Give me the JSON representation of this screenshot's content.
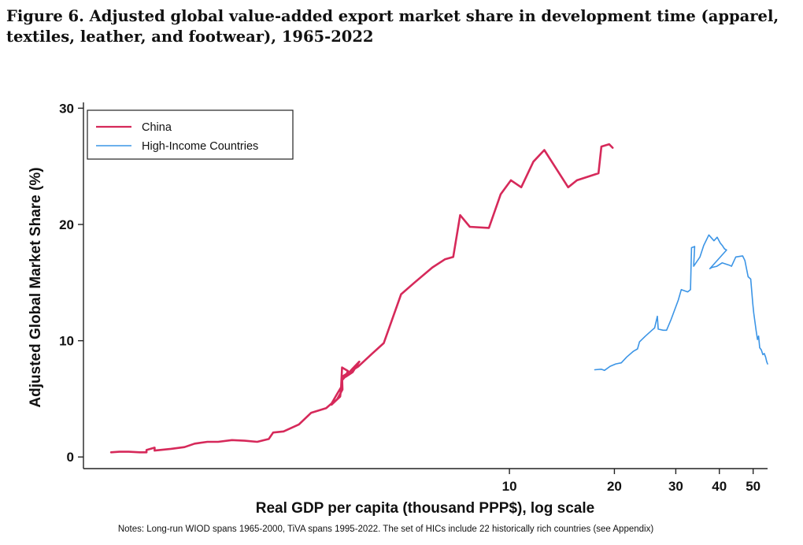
{
  "figure": {
    "title": "Figure 6. Adjusted global value-added export market share in development time (apparel, textiles, leather, and footwear), 1965-2022",
    "note": "Notes: Long-run WIOD spans 1965-2000, TiVA spans 1995-2022. The set of HICs include 22 historically rich countries (see Appendix)"
  },
  "chart_data": {
    "type": "line",
    "title": "",
    "xlabel": "Real GDP per capita (thousand PPP$), log scale",
    "ylabel": "Adjusted Global Market Share (%)",
    "x_scale": "log",
    "xlim": [
      0.6,
      55
    ],
    "ylim": [
      -1,
      30.5
    ],
    "x_ticks": [
      10,
      20,
      30,
      40,
      50
    ],
    "y_ticks": [
      0,
      10,
      20,
      30
    ],
    "grid": false,
    "legend_position": "top-left",
    "series": [
      {
        "name": "China",
        "color": "#d6295a",
        "points": [
          [
            0.72,
            0.4
          ],
          [
            0.76,
            0.45
          ],
          [
            0.81,
            0.45
          ],
          [
            0.87,
            0.4
          ],
          [
            0.91,
            0.4
          ],
          [
            0.91,
            0.6
          ],
          [
            0.96,
            0.8
          ],
          [
            0.96,
            0.55
          ],
          [
            1.07,
            0.7
          ],
          [
            1.17,
            0.85
          ],
          [
            1.25,
            1.15
          ],
          [
            1.36,
            1.3
          ],
          [
            1.46,
            1.3
          ],
          [
            1.6,
            1.45
          ],
          [
            1.74,
            1.4
          ],
          [
            1.89,
            1.3
          ],
          [
            2.04,
            1.55
          ],
          [
            2.1,
            2.1
          ],
          [
            2.25,
            2.2
          ],
          [
            2.49,
            2.8
          ],
          [
            2.7,
            3.8
          ],
          [
            2.98,
            4.2
          ],
          [
            3.09,
            4.6
          ],
          [
            3.2,
            5.4
          ],
          [
            3.29,
            6.0
          ],
          [
            3.31,
            7.7
          ],
          [
            3.44,
            7.4
          ],
          [
            3.39,
            6.9
          ],
          [
            3.55,
            7.3
          ],
          [
            3.71,
            8.2
          ],
          [
            3.55,
            7.6
          ],
          [
            3.31,
            6.6
          ],
          [
            3.27,
            5.2
          ],
          [
            3.09,
            4.5
          ],
          [
            3.21,
            5.0
          ],
          [
            3.32,
            5.8
          ],
          [
            3.31,
            6.9
          ],
          [
            3.69,
            7.8
          ],
          [
            4.04,
            8.9
          ],
          [
            4.36,
            9.8
          ],
          [
            4.89,
            14.0
          ],
          [
            5.34,
            15.0
          ],
          [
            6.01,
            16.3
          ],
          [
            6.53,
            17.0
          ],
          [
            6.9,
            17.2
          ],
          [
            7.22,
            20.8
          ],
          [
            7.7,
            19.8
          ],
          [
            8.73,
            19.7
          ],
          [
            9.44,
            22.6
          ],
          [
            10.1,
            23.8
          ],
          [
            10.81,
            23.2
          ],
          [
            11.71,
            25.4
          ],
          [
            12.59,
            26.4
          ],
          [
            14.74,
            23.2
          ],
          [
            15.62,
            23.8
          ],
          [
            16.76,
            24.1
          ],
          [
            18.0,
            24.4
          ],
          [
            18.35,
            26.7
          ],
          [
            19.32,
            26.9
          ],
          [
            19.77,
            26.6
          ]
        ]
      },
      {
        "name": "High-Income Countries",
        "color": "#3c95e6",
        "points": [
          [
            17.57,
            7.5
          ],
          [
            18.33,
            7.55
          ],
          [
            18.73,
            7.45
          ],
          [
            19.44,
            7.8
          ],
          [
            20.17,
            8.0
          ],
          [
            20.93,
            8.1
          ],
          [
            21.7,
            8.6
          ],
          [
            22.69,
            9.1
          ],
          [
            23.3,
            9.3
          ],
          [
            23.61,
            9.9
          ],
          [
            24.55,
            10.4
          ],
          [
            25.63,
            10.9
          ],
          [
            26.08,
            11.1
          ],
          [
            26.56,
            12.1
          ],
          [
            26.72,
            11.0
          ],
          [
            27.6,
            10.9
          ],
          [
            28.23,
            10.9
          ],
          [
            29.06,
            11.8
          ],
          [
            30.5,
            13.5
          ],
          [
            31.11,
            14.4
          ],
          [
            32.45,
            14.2
          ],
          [
            33.06,
            14.4
          ],
          [
            33.29,
            18.0
          ],
          [
            33.99,
            18.1
          ],
          [
            33.75,
            16.4
          ],
          [
            35.19,
            17.2
          ],
          [
            36.07,
            18.2
          ],
          [
            37.32,
            19.1
          ],
          [
            38.6,
            18.6
          ],
          [
            39.43,
            18.9
          ],
          [
            40.23,
            18.4
          ],
          [
            40.76,
            18.2
          ],
          [
            41.38,
            17.9
          ],
          [
            41.95,
            17.8
          ],
          [
            41.38,
            17.6
          ],
          [
            37.57,
            16.2
          ],
          [
            38.07,
            16.3
          ],
          [
            39.36,
            16.4
          ],
          [
            40.76,
            16.7
          ],
          [
            42.75,
            16.5
          ],
          [
            43.34,
            16.4
          ],
          [
            44.58,
            17.2
          ],
          [
            46.65,
            17.3
          ],
          [
            47.36,
            16.9
          ],
          [
            48.37,
            15.5
          ],
          [
            49.22,
            15.3
          ],
          [
            49.87,
            13.2
          ],
          [
            50.19,
            12.4
          ],
          [
            50.98,
            10.9
          ],
          [
            51.46,
            10.1
          ],
          [
            51.84,
            10.4
          ],
          [
            52.2,
            9.4
          ],
          [
            52.8,
            9.2
          ],
          [
            53.3,
            8.8
          ],
          [
            53.8,
            8.9
          ],
          [
            54.3,
            8.6
          ],
          [
            54.7,
            8.2
          ],
          [
            55.0,
            8.0
          ]
        ]
      }
    ]
  }
}
